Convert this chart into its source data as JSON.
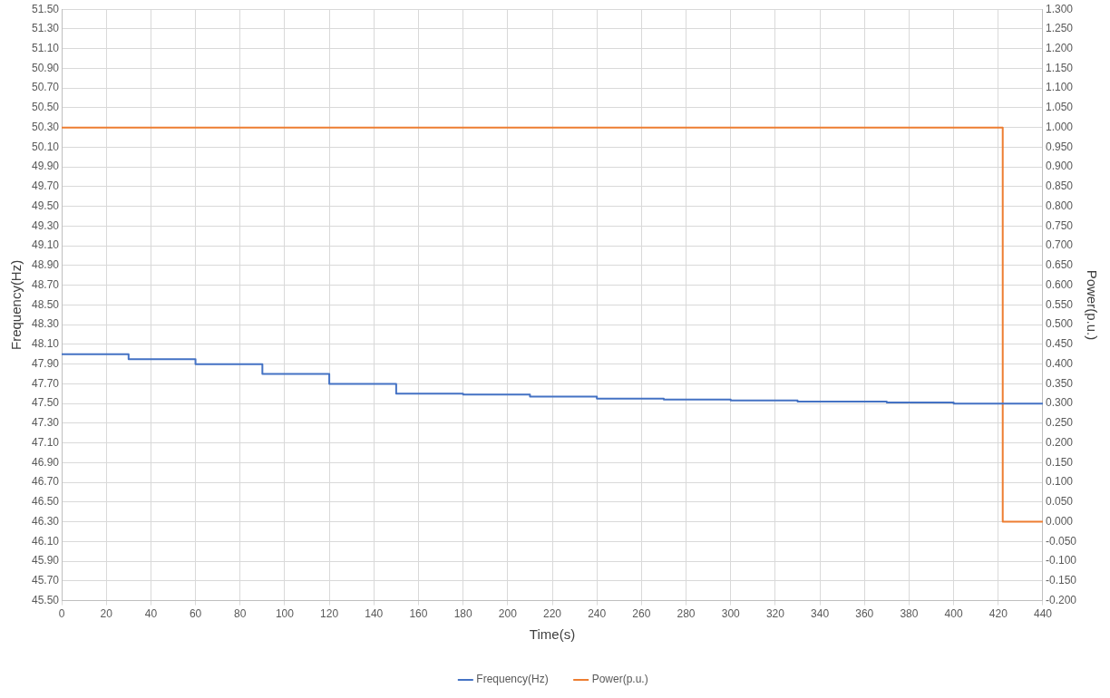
{
  "chart_data": {
    "type": "step",
    "xlabel": "Time(s)",
    "ylabel": "Frequency(Hz)",
    "y2label": "Power(p.u.)",
    "series": [
      {
        "name": "Frequency(Hz)",
        "color": "#4472c4",
        "x": [
          0,
          30,
          60,
          90,
          120,
          150,
          180,
          210,
          240,
          270,
          300,
          330,
          370,
          380,
          400,
          440
        ],
        "values": [
          48.0,
          47.95,
          47.9,
          47.8,
          47.7,
          47.6,
          47.59,
          47.57,
          47.55,
          47.54,
          47.53,
          47.52,
          47.51,
          47.51,
          47.5,
          47.5
        ]
      },
      {
        "name": "Power(p.u.)",
        "color": "#ed7d31",
        "axis": "y2",
        "x": [
          0,
          422,
          440
        ],
        "values": [
          1.0,
          0.0,
          0.0
        ]
      }
    ],
    "xlim": [
      0,
      440
    ],
    "xticks": [
      0,
      20,
      40,
      60,
      80,
      100,
      120,
      140,
      160,
      180,
      200,
      220,
      240,
      260,
      280,
      300,
      320,
      340,
      360,
      380,
      400,
      420,
      440
    ],
    "ylim": [
      45.5,
      51.5
    ],
    "yticks": [
      {
        "value": 45.5,
        "label": "45.50"
      },
      {
        "value": 45.7,
        "label": "45.70"
      },
      {
        "value": 45.9,
        "label": "45.90"
      },
      {
        "value": 46.1,
        "label": "46.10"
      },
      {
        "value": 46.3,
        "label": "46.30"
      },
      {
        "value": 46.5,
        "label": "46.50"
      },
      {
        "value": 46.7,
        "label": "46.70"
      },
      {
        "value": 46.9,
        "label": "46.90"
      },
      {
        "value": 47.1,
        "label": "47.10"
      },
      {
        "value": 47.3,
        "label": "47.30"
      },
      {
        "value": 47.5,
        "label": "47.50"
      },
      {
        "value": 47.7,
        "label": "47.70"
      },
      {
        "value": 47.9,
        "label": "47.90"
      },
      {
        "value": 48.1,
        "label": "48.10"
      },
      {
        "value": 48.3,
        "label": "48.30"
      },
      {
        "value": 48.5,
        "label": "48.50"
      },
      {
        "value": 48.7,
        "label": "48.70"
      },
      {
        "value": 48.9,
        "label": "48.90"
      },
      {
        "value": 49.1,
        "label": "49.10"
      },
      {
        "value": 49.3,
        "label": "49.30"
      },
      {
        "value": 49.5,
        "label": "49.50"
      },
      {
        "value": 49.7,
        "label": "49.70"
      },
      {
        "value": 49.9,
        "label": "49.90"
      },
      {
        "value": 50.1,
        "label": "50.10"
      },
      {
        "value": 50.3,
        "label": "50.30"
      },
      {
        "value": 50.5,
        "label": "50.50"
      },
      {
        "value": 50.7,
        "label": "50.70"
      },
      {
        "value": 50.9,
        "label": "50.90"
      },
      {
        "value": 51.1,
        "label": "51.10"
      },
      {
        "value": 51.3,
        "label": "51.30"
      },
      {
        "value": 51.5,
        "label": "51.50"
      }
    ],
    "y2lim": [
      -0.2,
      1.3
    ],
    "y2ticks": [
      {
        "value": -0.2,
        "label": "-0.200"
      },
      {
        "value": -0.15,
        "label": "-0.150"
      },
      {
        "value": -0.1,
        "label": "-0.100"
      },
      {
        "value": -0.05,
        "label": "-0.050"
      },
      {
        "value": 0,
        "label": "0.000"
      },
      {
        "value": 0.05,
        "label": "0.050"
      },
      {
        "value": 0.1,
        "label": "0.100"
      },
      {
        "value": 0.15,
        "label": "0.150"
      },
      {
        "value": 0.2,
        "label": "0.200"
      },
      {
        "value": 0.25,
        "label": "0.250"
      },
      {
        "value": 0.3,
        "label": "0.300"
      },
      {
        "value": 0.35,
        "label": "0.350"
      },
      {
        "value": 0.4,
        "label": "0.400"
      },
      {
        "value": 0.45,
        "label": "0.450"
      },
      {
        "value": 0.5,
        "label": "0.500"
      },
      {
        "value": 0.55,
        "label": "0.550"
      },
      {
        "value": 0.6,
        "label": "0.600"
      },
      {
        "value": 0.65,
        "label": "0.650"
      },
      {
        "value": 0.7,
        "label": "0.700"
      },
      {
        "value": 0.75,
        "label": "0.750"
      },
      {
        "value": 0.8,
        "label": "0.800"
      },
      {
        "value": 0.85,
        "label": "0.850"
      },
      {
        "value": 0.9,
        "label": "0.900"
      },
      {
        "value": 0.95,
        "label": "0.950"
      },
      {
        "value": 1.0,
        "label": "1.000"
      },
      {
        "value": 1.05,
        "label": "1.050"
      },
      {
        "value": 1.1,
        "label": "1.100"
      },
      {
        "value": 1.15,
        "label": "1.150"
      },
      {
        "value": 1.2,
        "label": "1.200"
      },
      {
        "value": 1.25,
        "label": "1.250"
      },
      {
        "value": 1.3,
        "label": "1.300"
      }
    ],
    "grid": true,
    "legend": "bottom",
    "marker": "none",
    "line_style": "solid"
  }
}
